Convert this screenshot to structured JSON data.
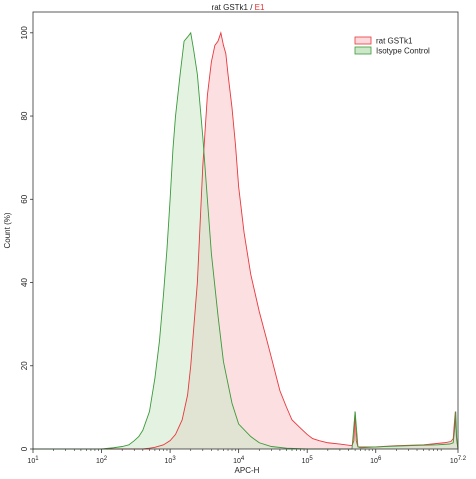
{
  "chart_data": {
    "type": "area",
    "title_main": "rat GSTk1",
    "title_sep": " / ",
    "title_gate": "E1",
    "title_gate_color": "#e03030",
    "xlabel": "APC-H",
    "ylabel": "Count (%)",
    "x_scale": "log",
    "xlim": [
      10,
      15848931.9
    ],
    "ylim": [
      0,
      105
    ],
    "x_ticks": [
      {
        "value": 10,
        "base": "10",
        "exp": "1"
      },
      {
        "value": 100,
        "base": "10",
        "exp": "2"
      },
      {
        "value": 1000,
        "base": "10",
        "exp": "3"
      },
      {
        "value": 10000,
        "base": "10",
        "exp": "4"
      },
      {
        "value": 100000,
        "base": "10",
        "exp": "5"
      },
      {
        "value": 1000000,
        "base": "10",
        "exp": "6"
      },
      {
        "value": 15848931.9,
        "base": "10",
        "exp": "7.2"
      }
    ],
    "y_ticks": [
      0,
      20,
      40,
      60,
      80,
      100
    ],
    "grid": false,
    "legend_position": "top-right",
    "series": [
      {
        "name": "rat GSTk1",
        "line_color": "#e8383d",
        "fill_color": "#fcd9dc",
        "fill_opacity": 0.85,
        "x": [
          10,
          100,
          200,
          300,
          400,
          500,
          600,
          800,
          1000,
          1200,
          1500,
          1800,
          2000,
          2500,
          3000,
          3500,
          4000,
          4500,
          5000,
          5500,
          6000,
          6500,
          7000,
          8000,
          9000,
          10000,
          12000,
          15000,
          20000,
          25000,
          30000,
          40000,
          50000,
          60000,
          80000,
          100000,
          120000,
          150000,
          200000,
          300000,
          450000,
          480000,
          500000,
          520000,
          550000,
          600000,
          800000,
          1000000,
          2000000,
          5000000,
          10000000,
          12500000,
          13500000,
          14000000,
          14500000,
          15000000,
          15848931.9
        ],
        "y": [
          0,
          0,
          0,
          0,
          0,
          0.2,
          0.4,
          1,
          2,
          3.5,
          7,
          13,
          20,
          40,
          68,
          85,
          93,
          97,
          98,
          100,
          97,
          95,
          90,
          82,
          73,
          63,
          52,
          42,
          33,
          27,
          22,
          14,
          10,
          7,
          5,
          3.5,
          2.5,
          2,
          1.5,
          1.2,
          0.8,
          2,
          9,
          2,
          0.5,
          0.5,
          0.5,
          0.5,
          0.8,
          1,
          1.5,
          1.8,
          2.5,
          6,
          9,
          3,
          0
        ]
      },
      {
        "name": "Isotype Control",
        "line_color": "#3a9a3a",
        "fill_color": "#cce8c9",
        "fill_opacity": 0.55,
        "x": [
          10,
          50,
          100,
          150,
          200,
          250,
          300,
          350,
          400,
          500,
          600,
          700,
          800,
          900,
          1000,
          1100,
          1200,
          1400,
          1600,
          1800,
          2000,
          2200,
          2500,
          3000,
          3500,
          4000,
          5000,
          6000,
          8000,
          10000,
          15000,
          20000,
          30000,
          50000,
          100000,
          300000,
          450000,
          500000,
          550000,
          600000,
          1000000,
          3000000,
          8000000,
          12000000,
          13500000,
          14200000,
          14700000,
          15200000,
          15848931.9
        ],
        "y": [
          0,
          0,
          0,
          0.3,
          0.6,
          1,
          2,
          3,
          4.5,
          9,
          17,
          26,
          37,
          48,
          60,
          72,
          80,
          90,
          98,
          99,
          100,
          96,
          90,
          75,
          60,
          47,
          32,
          21,
          11,
          6,
          3,
          1.5,
          0.6,
          0.2,
          0,
          0,
          0,
          9,
          0.5,
          0.3,
          0.5,
          0.8,
          1,
          1.2,
          1.5,
          5,
          9,
          2,
          0
        ]
      }
    ]
  }
}
